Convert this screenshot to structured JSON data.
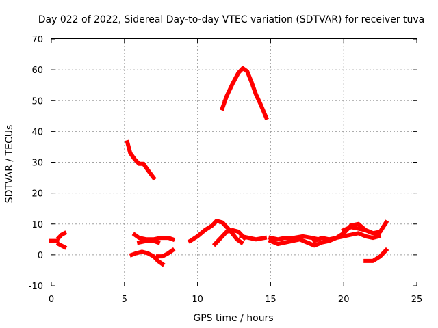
{
  "chart_data": {
    "type": "line",
    "title": "Day 022 of 2022, Sidereal Day-to-day VTEC variation (SDTVAR) for receiver tuva",
    "xlabel": "GPS time / hours",
    "ylabel": "SDTVAR / TECUs",
    "xlim": [
      0,
      25
    ],
    "ylim": [
      -10,
      70
    ],
    "xticks": [
      0,
      5,
      10,
      15,
      20,
      25
    ],
    "yticks": [
      -10,
      0,
      10,
      20,
      30,
      40,
      50,
      60,
      70
    ],
    "xtick_labels": [
      "0",
      "5",
      "10",
      "15",
      "20",
      "25"
    ],
    "ytick_labels": [
      "-10",
      "0",
      "10",
      "20",
      "30",
      "40",
      "50",
      "60",
      "70"
    ],
    "grid": true,
    "legend": "none",
    "color": "#ff0000",
    "series": [
      {
        "name": "s1",
        "x": [
          0.0,
          0.4
        ],
        "y": [
          4.5,
          4.5
        ]
      },
      {
        "name": "s2",
        "x": [
          0.5,
          0.9
        ],
        "y": [
          3.5,
          2.5
        ]
      },
      {
        "name": "s3",
        "x": [
          0.5,
          0.7,
          0.9
        ],
        "y": [
          5.5,
          6.5,
          7.0
        ]
      },
      {
        "name": "s4",
        "x": [
          5.2,
          5.4,
          5.7,
          6.0,
          6.3,
          6.6,
          7.0
        ],
        "y": [
          36.5,
          33.0,
          31.0,
          29.5,
          29.5,
          27.5,
          25.0
        ]
      },
      {
        "name": "s5",
        "x": [
          11.7,
          12.0,
          12.4,
          12.8,
          13.1,
          13.4,
          13.7,
          14.0,
          14.3,
          14.7
        ],
        "y": [
          47.5,
          51.5,
          55.5,
          59.0,
          60.5,
          59.5,
          56.0,
          52.0,
          49.0,
          44.5
        ]
      },
      {
        "name": "s6",
        "x": [
          5.7,
          6.0,
          6.5,
          7.0,
          7.5,
          8.0,
          8.3
        ],
        "y": [
          6.5,
          5.5,
          5.0,
          5.0,
          5.5,
          5.5,
          5.0
        ]
      },
      {
        "name": "s7",
        "x": [
          6.0,
          6.5,
          7.0,
          7.3
        ],
        "y": [
          4.0,
          4.5,
          4.5,
          4.0
        ]
      },
      {
        "name": "s8",
        "x": [
          5.5,
          5.8,
          6.2,
          6.6,
          7.0,
          7.3,
          7.6
        ],
        "y": [
          0.0,
          0.5,
          1.0,
          0.5,
          -0.5,
          -2.0,
          -3.0
        ]
      },
      {
        "name": "s9",
        "x": [
          7.3,
          7.6,
          8.0,
          8.3
        ],
        "y": [
          -0.5,
          -0.5,
          0.5,
          1.5
        ]
      },
      {
        "name": "s10",
        "x": [
          9.5,
          10.0,
          10.5,
          11.0,
          11.3,
          11.7,
          12.2,
          12.7,
          13.0
        ],
        "y": [
          4.5,
          6.0,
          8.0,
          9.5,
          11.0,
          10.5,
          8.0,
          5.0,
          4.0
        ]
      },
      {
        "name": "s11",
        "x": [
          11.2,
          11.6,
          12.0,
          12.4,
          12.8,
          13.2
        ],
        "y": [
          3.5,
          5.5,
          7.5,
          8.0,
          7.5,
          5.5
        ]
      },
      {
        "name": "s12",
        "x": [
          13.0,
          13.5,
          14.0,
          14.6
        ],
        "y": [
          6.0,
          5.5,
          5.0,
          5.5
        ]
      },
      {
        "name": "s13",
        "x": [
          15.0,
          15.5,
          16.0,
          16.5,
          17.0,
          17.5,
          18.0,
          18.5,
          19.0,
          19.5,
          20.0,
          20.5,
          21.0,
          21.5,
          22.0,
          22.5,
          22.9
        ],
        "y": [
          4.5,
          3.5,
          4.0,
          4.5,
          5.0,
          4.0,
          3.0,
          4.0,
          4.5,
          5.5,
          7.0,
          9.5,
          10.0,
          8.0,
          7.0,
          7.5,
          10.5
        ]
      },
      {
        "name": "s14",
        "x": [
          15.0,
          15.5,
          16.0,
          16.6,
          17.2,
          17.8,
          18.3
        ],
        "y": [
          5.5,
          5.0,
          5.5,
          5.5,
          6.0,
          5.5,
          5.0
        ]
      },
      {
        "name": "s15",
        "x": [
          18.0,
          18.5,
          19.0,
          19.5,
          20.0,
          20.5,
          21.0,
          21.5,
          22.0,
          22.4
        ],
        "y": [
          4.5,
          5.5,
          5.0,
          5.5,
          6.0,
          6.5,
          7.0,
          6.0,
          5.5,
          6.0
        ]
      },
      {
        "name": "s16",
        "x": [
          20.0,
          20.5,
          21.0,
          21.5,
          22.0,
          22.4
        ],
        "y": [
          8.0,
          9.0,
          8.5,
          8.0,
          7.0,
          6.5
        ]
      },
      {
        "name": "s17",
        "x": [
          21.5,
          22.0,
          22.5,
          22.9
        ],
        "y": [
          -2.0,
          -2.0,
          -0.5,
          1.5
        ]
      }
    ]
  }
}
